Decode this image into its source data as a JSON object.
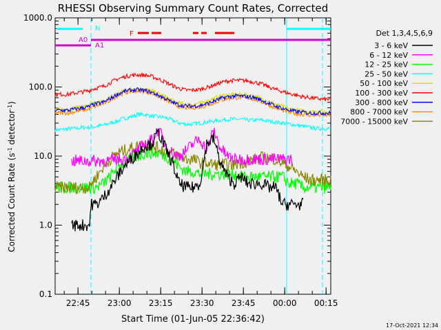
{
  "chart_data": {
    "type": "line",
    "title": "RHESSI Observing Summary Count Rates, Corrected",
    "xlabel": "Start Time (01-Jun-05 22:36:42)",
    "ylabel_main": "Corrected Count Rate (s",
    "ylabel_sup1": "-1",
    "ylabel_mid": " detector",
    "ylabel_sup2": "-1",
    "ylabel_end": ")",
    "yscale": "log",
    "ylim": [
      0.1,
      1000
    ],
    "xlim_minutes": [
      0,
      100
    ],
    "x_ticks": [
      {
        "label": "22:45",
        "minute": 8.3
      },
      {
        "label": "23:00",
        "minute": 23.3
      },
      {
        "label": "23:15",
        "minute": 38.3
      },
      {
        "label": "23:30",
        "minute": 53.3
      },
      {
        "label": "23:45",
        "minute": 68.3
      },
      {
        "label": "00:00",
        "minute": 83.3
      },
      {
        "label": "00:15",
        "minute": 98.3
      }
    ],
    "y_ticks": [
      {
        "label": "0.1",
        "value": 0.1
      },
      {
        "label": "1.0",
        "value": 1
      },
      {
        "label": "10.0",
        "value": 10
      },
      {
        "label": "100.0",
        "value": 100
      },
      {
        "label": "1000.0",
        "value": 1000
      }
    ],
    "legend_title": "Det 1,3,4,5,6,9",
    "legend_position": "right",
    "timestamp": "17-Oct-2021 12:34",
    "x_sample_minutes": [
      0,
      2.5,
      5,
      6,
      7.5,
      10,
      12.5,
      13,
      15,
      17.5,
      20,
      22.5,
      25,
      27.5,
      30,
      32.5,
      35,
      37.5,
      40,
      42.5,
      45,
      47.5,
      50,
      52.5,
      55,
      57.5,
      60,
      62.5,
      65,
      67.5,
      70,
      72.5,
      75,
      77.5,
      80,
      82.5,
      85,
      87.5,
      90,
      92.5,
      95,
      97.5,
      100
    ],
    "series": [
      {
        "name": "3 - 6 keV",
        "color": "#000000",
        "start": 6,
        "end": 90,
        "values": [
          null,
          null,
          null,
          1.0,
          1.0,
          1.0,
          1.0,
          2.0,
          2.0,
          2.5,
          3.5,
          5,
          7,
          9,
          11,
          14,
          15,
          22,
          13,
          8,
          4,
          3.5,
          3.5,
          4,
          15,
          18,
          8,
          5,
          4,
          5,
          4,
          4,
          4,
          3.5,
          3.5,
          2,
          2,
          2,
          null,
          null,
          null,
          null,
          null
        ]
      },
      {
        "name": "6 - 12 keV",
        "color": "#ff00ff",
        "start": 6,
        "end": 86,
        "values": [
          null,
          null,
          null,
          8.5,
          8.5,
          8.5,
          8.5,
          8.5,
          8.5,
          8.5,
          8.5,
          9,
          9,
          10,
          12,
          15,
          17,
          24,
          15,
          11,
          10,
          12,
          15,
          18,
          12,
          24,
          13,
          10,
          9,
          9,
          9,
          9,
          9,
          9,
          9,
          9,
          9,
          null,
          null,
          null,
          null,
          null,
          null
        ]
      },
      {
        "name": "12 - 25 keV",
        "color": "#00ff00",
        "start": 0,
        "end": 100,
        "values": [
          3.5,
          3.5,
          3.5,
          3.5,
          3.5,
          3.5,
          3.5,
          3.5,
          3.5,
          4,
          5,
          7,
          8,
          9,
          10,
          11,
          11,
          11,
          10,
          9,
          7,
          6,
          6,
          5.5,
          5.5,
          5.5,
          5.5,
          5.5,
          5.5,
          5,
          5,
          5,
          5,
          5,
          5,
          5,
          4,
          4,
          3.5,
          3.5,
          3.5,
          3.5,
          3.5
        ]
      },
      {
        "name": "25 - 50 keV",
        "color": "#00ffff",
        "start": 0,
        "end": 100,
        "values": [
          24,
          24,
          25,
          25,
          25,
          26,
          26,
          26,
          27,
          28,
          30,
          32,
          35,
          37,
          40,
          40,
          38,
          37,
          36,
          33,
          30,
          29,
          29,
          30,
          31,
          32,
          33,
          34,
          34,
          34,
          33,
          33,
          33,
          32,
          31,
          30,
          29,
          28,
          27,
          26,
          25,
          25,
          25
        ]
      },
      {
        "name": "50 - 100 keV",
        "color": "#dddd00",
        "start": 0,
        "end": 100,
        "values": [
          47,
          47,
          48,
          48,
          50,
          52,
          54,
          56,
          58,
          62,
          70,
          80,
          88,
          94,
          95,
          93,
          88,
          80,
          72,
          64,
          58,
          56,
          56,
          58,
          62,
          68,
          74,
          77,
          78,
          78,
          76,
          73,
          68,
          62,
          56,
          52,
          48,
          46,
          45,
          44,
          44,
          44,
          44
        ]
      },
      {
        "name": "100 - 300 keV",
        "color": "#ff0000",
        "start": 0,
        "end": 100,
        "values": [
          78,
          78,
          78,
          80,
          82,
          85,
          88,
          92,
          96,
          102,
          115,
          130,
          140,
          147,
          150,
          148,
          142,
          130,
          118,
          105,
          95,
          90,
          90,
          92,
          98,
          106,
          115,
          122,
          124,
          124,
          122,
          117,
          110,
          100,
          92,
          86,
          80,
          76,
          72,
          70,
          68,
          66,
          66
        ]
      },
      {
        "name": "300 - 800 keV",
        "color": "#0000ff",
        "start": 0,
        "end": 100,
        "values": [
          46,
          46,
          46,
          47,
          48,
          50,
          52,
          54,
          57,
          60,
          68,
          78,
          86,
          90,
          91,
          89,
          84,
          76,
          68,
          60,
          55,
          53,
          53,
          54,
          57,
          62,
          68,
          72,
          74,
          74,
          72,
          70,
          64,
          58,
          53,
          49,
          46,
          44,
          43,
          42,
          42,
          42,
          42
        ]
      },
      {
        "name": "800 - 7000 keV",
        "color": "#ff8800",
        "start": 0,
        "end": 100,
        "values": [
          42,
          42,
          42,
          43,
          44,
          46,
          48,
          50,
          53,
          57,
          64,
          74,
          82,
          86,
          88,
          86,
          81,
          73,
          65,
          58,
          52,
          50,
          50,
          51,
          54,
          59,
          64,
          68,
          70,
          70,
          69,
          66,
          61,
          55,
          50,
          46,
          43,
          41,
          40,
          39,
          39,
          39,
          39
        ]
      },
      {
        "name": "7000 - 15000 keV",
        "color": "#888800",
        "start": 0,
        "end": 100,
        "values": [
          3.5,
          3.5,
          3.5,
          3.5,
          3.5,
          3.5,
          3.5,
          4,
          5,
          7,
          9,
          11,
          12,
          13,
          14,
          15,
          14,
          13,
          12,
          11,
          10,
          9,
          9,
          8,
          8,
          7.5,
          7.5,
          7.5,
          7.5,
          8,
          8.5,
          9,
          9.5,
          9.5,
          9,
          8,
          7,
          6,
          5,
          4.5,
          4.5,
          4.5,
          4.5
        ]
      }
    ],
    "annotations": [
      {
        "label": "N",
        "color": "#00ffff"
      },
      {
        "label": "A0",
        "color": "#cc00cc"
      },
      {
        "label": "A1",
        "color": "#cc00cc"
      },
      {
        "label": "F",
        "color": "#ee0000"
      }
    ]
  }
}
